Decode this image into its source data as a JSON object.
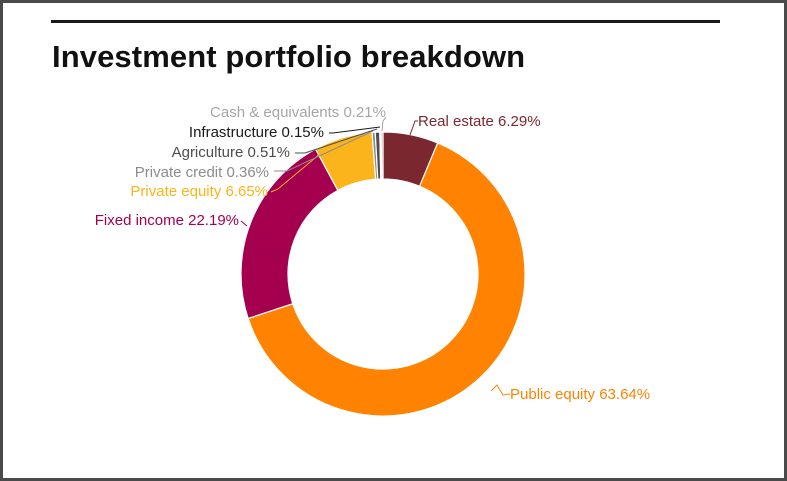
{
  "title": "Investment portfolio breakdown",
  "chart_data": {
    "type": "pie",
    "variant": "donut",
    "title": "Investment portfolio breakdown",
    "unit": "%",
    "slices": [
      {
        "label": "Real estate",
        "value": 6.29,
        "display": "Real estate 6.29%",
        "color": "#7b2730"
      },
      {
        "label": "Public equity",
        "value": 63.64,
        "display": "Public equity 63.64%",
        "color": "#ff8200"
      },
      {
        "label": "Fixed income",
        "value": 22.19,
        "display": "Fixed income 22.19%",
        "color": "#a50050"
      },
      {
        "label": "Private equity",
        "value": 6.65,
        "display": "Private equity 6.65%",
        "color": "#fbb41b"
      },
      {
        "label": "Private credit",
        "value": 0.36,
        "display": "Private credit 0.36%",
        "color": "#8c8c8c"
      },
      {
        "label": "Agriculture",
        "value": 0.51,
        "display": "Agriculture 0.51%",
        "color": "#4d4d4d"
      },
      {
        "label": "Infrastructure",
        "value": 0.15,
        "display": "Infrastructure 0.15%",
        "color": "#1a1a1a"
      },
      {
        "label": "Cash & equivalents",
        "value": 0.21,
        "display": "Cash & equivalents 0.21%",
        "color": "#a6a6a6"
      }
    ]
  }
}
